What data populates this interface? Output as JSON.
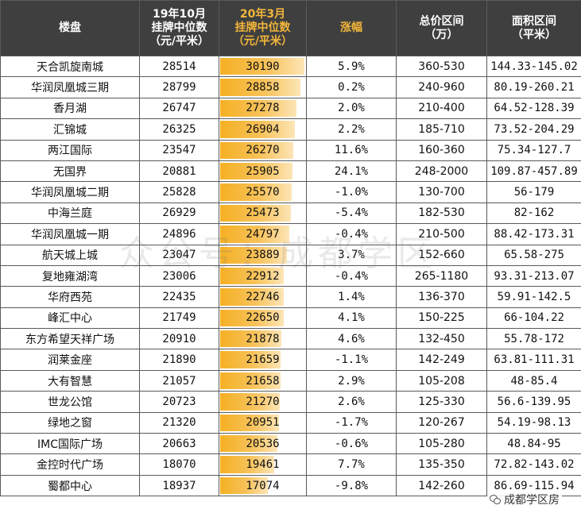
{
  "headers": {
    "name": "楼盘",
    "oct_line1": "19年10月",
    "oct_line2": "挂牌中位数",
    "oct_line3": "（元/平米）",
    "mar_line1": "20年3月",
    "mar_line2": "挂牌中位数",
    "mar_line3": "（元/平米）",
    "change": "涨幅",
    "total_line1": "总价区间",
    "total_line2": "（万）",
    "area_line1": "面积区间",
    "area_line2": "（平米）"
  },
  "bar_max": 30190,
  "bar_color": "#f5b023",
  "header_bg": "#3f3f3f",
  "highlight_color": "#f3b63a",
  "rows": [
    {
      "name": "天合凯旋南城",
      "oct": "28514",
      "mar": "30190",
      "mar_value": 30190,
      "change": "5.9%",
      "total": "360-530",
      "area": "144.33-145.02"
    },
    {
      "name": "华润凤凰城三期",
      "oct": "28799",
      "mar": "28858",
      "mar_value": 28858,
      "change": "0.2%",
      "total": "240-960",
      "area": "80.19-260.21"
    },
    {
      "name": "香月湖",
      "oct": "26747",
      "mar": "27278",
      "mar_value": 27278,
      "change": "2.0%",
      "total": "210-400",
      "area": "64.52-128.39"
    },
    {
      "name": "汇锦城",
      "oct": "26325",
      "mar": "26904",
      "mar_value": 26904,
      "change": "2.2%",
      "total": "185-710",
      "area": "73.52-204.29"
    },
    {
      "name": "两江国际",
      "oct": "23547",
      "mar": "26270",
      "mar_value": 26270,
      "change": "11.6%",
      "total": "160-360",
      "area": "75.34-127.7"
    },
    {
      "name": "无国界",
      "oct": "20881",
      "mar": "25905",
      "mar_value": 25905,
      "change": "24.1%",
      "total": "248-2000",
      "area": "109.87-457.89"
    },
    {
      "name": "华润凤凰城二期",
      "oct": "25828",
      "mar": "25570",
      "mar_value": 25570,
      "change": "-1.0%",
      "total": "130-700",
      "area": "56-179"
    },
    {
      "name": "中海兰庭",
      "oct": "26929",
      "mar": "25473",
      "mar_value": 25473,
      "change": "-5.4%",
      "total": "182-530",
      "area": "82-162"
    },
    {
      "name": "华润凤凰城一期",
      "oct": "24896",
      "mar": "24797",
      "mar_value": 24797,
      "change": "-0.4%",
      "total": "210-500",
      "area": "88.42-173.31"
    },
    {
      "name": "航天城上城",
      "oct": "23047",
      "mar": "23889",
      "mar_value": 23889,
      "change": "3.7%",
      "total": "152-660",
      "area": "65.58-275"
    },
    {
      "name": "复地雍湖湾",
      "oct": "23006",
      "mar": "22912",
      "mar_value": 22912,
      "change": "-0.4%",
      "total": "265-1180",
      "area": "93.31-213.07"
    },
    {
      "name": "华府西苑",
      "oct": "22435",
      "mar": "22746",
      "mar_value": 22746,
      "change": "1.4%",
      "total": "136-370",
      "area": "59.91-142.5"
    },
    {
      "name": "峰汇中心",
      "oct": "21749",
      "mar": "22650",
      "mar_value": 22650,
      "change": "4.1%",
      "total": "150-225",
      "area": "66-104.22"
    },
    {
      "name": "东方希望天祥广场",
      "oct": "20910",
      "mar": "21878",
      "mar_value": 21878,
      "change": "4.6%",
      "total": "132-450",
      "area": "55.78-172"
    },
    {
      "name": "润莱金座",
      "oct": "21890",
      "mar": "21659",
      "mar_value": 21659,
      "change": "-1.1%",
      "total": "142-249",
      "area": "63.81-111.31"
    },
    {
      "name": "大有智慧",
      "oct": "21057",
      "mar": "21658",
      "mar_value": 21658,
      "change": "2.9%",
      "total": "105-208",
      "area": "48-85.4"
    },
    {
      "name": "世龙公馆",
      "oct": "20723",
      "mar": "21270",
      "mar_value": 21270,
      "change": "2.6%",
      "total": "125-330",
      "area": "56.6-139.95"
    },
    {
      "name": "绿地之窗",
      "oct": "21320",
      "mar": "20951",
      "mar_value": 20951,
      "change": "-1.7%",
      "total": "120-267",
      "area": "54.19-98.13"
    },
    {
      "name": "IMC国际广场",
      "oct": "20663",
      "mar": "20536",
      "mar_value": 20536,
      "change": "-0.6%",
      "total": "105-280",
      "area": "48.84-95"
    },
    {
      "name": "金控时代广场",
      "oct": "18070",
      "mar": "19461",
      "mar_value": 19461,
      "change": "7.7%",
      "total": "135-350",
      "area": "72.82-143.02"
    },
    {
      "name": "蜀都中心",
      "oct": "18937",
      "mar": "17074",
      "mar_value": 17074,
      "change": "-9.8%",
      "total": "142-260",
      "area": "86.69-115.94"
    }
  ],
  "watermark": "众公号：成都学区",
  "logo": {
    "icon": "wechat-icon",
    "text": "成都学区房"
  }
}
